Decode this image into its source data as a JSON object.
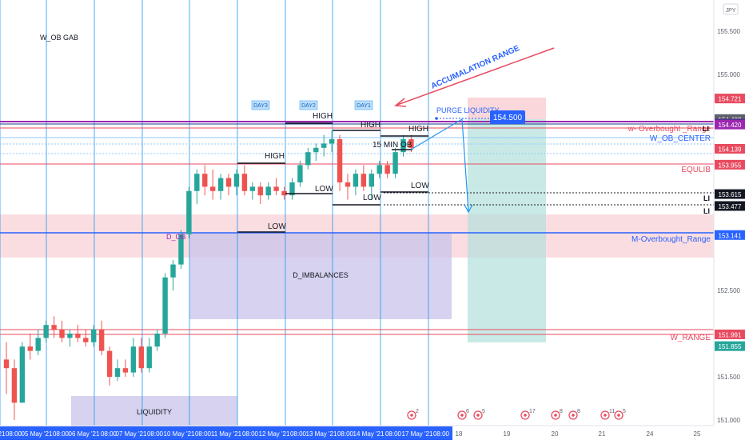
{
  "currency": "JPY",
  "chart_data": {
    "type": "candlestick",
    "ylim": [
      150.95,
      155.75
    ],
    "y_ticks": [
      "155.500",
      "155.000",
      "152.500",
      "151.500",
      "151.000"
    ],
    "x_labels": [
      "21",
      "08:00",
      "05 May '21",
      "08:00",
      "06 May '21",
      "08:00",
      "07 May '21",
      "08:00",
      "10 May '21",
      "08:00",
      "11 May '21",
      "08:00",
      "12 May '21",
      "08:00",
      "13 May '21",
      "08:00",
      "14 May '21",
      "08:00",
      "17 May '21",
      "08:00",
      "18",
      "19",
      "20",
      "21",
      "24",
      "25"
    ],
    "candles": [
      [
        151.7,
        151.9,
        151.3,
        151.6
      ],
      [
        151.6,
        151.7,
        151.0,
        151.2
      ],
      [
        151.2,
        151.9,
        151.2,
        151.85
      ],
      [
        151.85,
        152.0,
        151.7,
        151.8
      ],
      [
        151.8,
        152.05,
        151.75,
        151.95
      ],
      [
        151.95,
        152.15,
        151.9,
        152.1
      ],
      [
        152.1,
        152.2,
        151.95,
        152.05
      ],
      [
        152.05,
        152.15,
        151.9,
        151.95
      ],
      [
        151.95,
        152.05,
        151.85,
        152.0
      ],
      [
        152.0,
        152.1,
        151.9,
        151.95
      ],
      [
        151.95,
        152.05,
        151.85,
        151.9
      ],
      [
        151.9,
        152.1,
        151.85,
        152.05
      ],
      [
        152.05,
        152.15,
        151.75,
        151.8
      ],
      [
        151.8,
        151.85,
        151.4,
        151.5
      ],
      [
        151.5,
        151.7,
        151.45,
        151.6
      ],
      [
        151.6,
        151.7,
        151.5,
        151.55
      ],
      [
        151.55,
        151.95,
        151.5,
        151.85
      ],
      [
        151.85,
        151.95,
        151.55,
        151.6
      ],
      [
        151.6,
        151.95,
        151.55,
        151.85
      ],
      [
        151.85,
        152.05,
        151.8,
        152.0
      ],
      [
        152.0,
        152.7,
        151.95,
        152.65
      ],
      [
        152.65,
        152.85,
        152.5,
        152.8
      ],
      [
        152.8,
        153.2,
        152.75,
        153.15
      ],
      [
        153.15,
        153.7,
        153.1,
        153.65
      ],
      [
        153.65,
        153.9,
        153.5,
        153.85
      ],
      [
        153.85,
        153.95,
        153.6,
        153.7
      ],
      [
        153.7,
        153.9,
        153.55,
        153.65
      ],
      [
        153.65,
        153.85,
        153.55,
        153.8
      ],
      [
        153.8,
        153.85,
        153.6,
        153.7
      ],
      [
        153.7,
        153.9,
        153.6,
        153.85
      ],
      [
        153.85,
        153.95,
        153.6,
        153.65
      ],
      [
        153.65,
        153.75,
        153.55,
        153.7
      ],
      [
        153.7,
        153.75,
        153.5,
        153.6
      ],
      [
        153.6,
        153.75,
        153.55,
        153.7
      ],
      [
        153.7,
        153.8,
        153.6,
        153.65
      ],
      [
        153.65,
        153.7,
        153.55,
        153.6
      ],
      [
        153.6,
        153.8,
        153.55,
        153.75
      ],
      [
        153.75,
        154.0,
        153.7,
        153.95
      ],
      [
        153.95,
        154.15,
        153.9,
        154.1
      ],
      [
        154.1,
        154.2,
        154.0,
        154.15
      ],
      [
        154.15,
        154.3,
        154.05,
        154.2
      ],
      [
        154.2,
        154.35,
        154.1,
        154.25
      ],
      [
        154.25,
        154.3,
        153.65,
        153.75
      ],
      [
        153.75,
        153.85,
        153.55,
        153.7
      ],
      [
        153.7,
        153.9,
        153.6,
        153.85
      ],
      [
        153.85,
        153.95,
        153.65,
        153.7
      ],
      [
        153.7,
        153.9,
        153.55,
        153.85
      ],
      [
        153.85,
        154.0,
        153.8,
        153.95
      ],
      [
        153.95,
        154.0,
        153.8,
        153.85
      ],
      [
        153.85,
        154.15,
        153.8,
        154.1
      ],
      [
        154.1,
        154.3,
        154.05,
        154.25
      ],
      [
        154.25,
        154.3,
        154.1,
        154.15
      ]
    ]
  },
  "price_labels": [
    {
      "text": "154.721",
      "price": 154.721,
      "color": "#e84a5f"
    },
    {
      "text": "154.483",
      "price": 154.483,
      "color": "#5d606b"
    },
    {
      "text": "154.434",
      "price": 154.434,
      "color": "#e84a5f"
    },
    {
      "text": "154.431",
      "price": 154.431,
      "color": "#1e3a8a"
    },
    {
      "text": "154.420",
      "price": 154.42,
      "color": "#9c27b0"
    },
    {
      "text": "154.139",
      "price": 154.139,
      "color": "#e84a5f"
    },
    {
      "text": "153.955",
      "price": 153.955,
      "color": "#e84a5f"
    },
    {
      "text": "153.615",
      "price": 153.615,
      "color": "#131722"
    },
    {
      "text": "153.477",
      "price": 153.477,
      "color": "#131722"
    },
    {
      "text": "153.141",
      "price": 153.141,
      "color": "#2962ff"
    },
    {
      "text": "151.991",
      "price": 151.991,
      "color": "#e84a5f"
    },
    {
      "text": "151.855",
      "price": 151.855,
      "color": "#26a69a"
    }
  ],
  "annotations": {
    "w_ob_gab": "W_OB GAB",
    "accumulation_range": "ACCUMALATION RANGE",
    "purge_liquidity": "PURGE LIQUIDITY",
    "price_box": "154.500",
    "w_overbought_range": "w- Overbought _Range",
    "w_ob_center": "W_OB_CENTER",
    "equlib": "EQULIB",
    "m_overbought_range": "M-Overbought_Range",
    "w_range": "W_RANGE",
    "d_ob": "D_OB",
    "d_imbalances": "D_IMBALANCES",
    "liquidity": "LIQUIDITY",
    "fifteen_min": "15 MIN OB",
    "day1": "DAY1",
    "day2": "DAY2",
    "day3": "DAY3",
    "li": "LI",
    "high_labels": [
      "HIGH",
      "HIGH",
      "HIGH",
      "HIGH"
    ],
    "low_labels": [
      "LOW",
      "LOW",
      "LOW",
      "LOW"
    ]
  },
  "colors": {
    "up": "#26a69a",
    "down": "#ef5350",
    "vline": "#2196f3",
    "pink": "#e84a5f",
    "blue": "#2962ff",
    "purple": "#9c27b0"
  },
  "event_badges": [
    "2",
    "6",
    "5",
    "17",
    "8",
    "8",
    "11",
    "5"
  ]
}
